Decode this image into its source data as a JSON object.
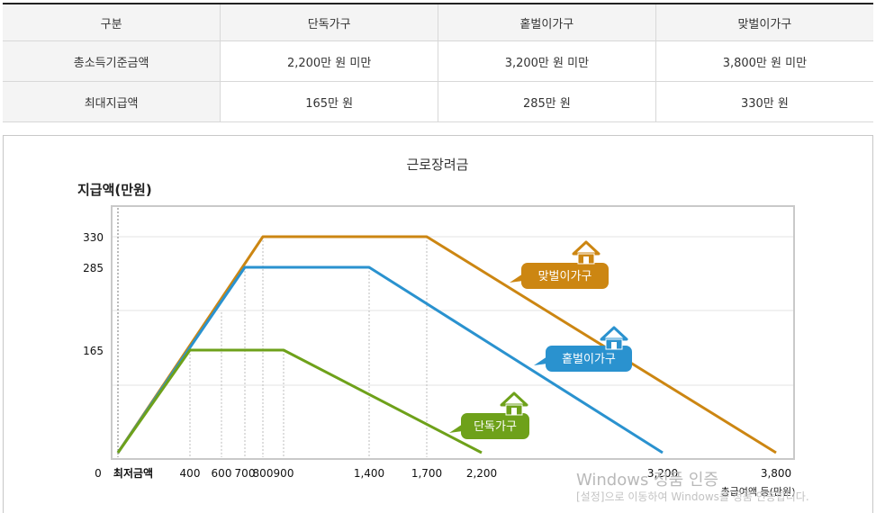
{
  "table": {
    "headers": [
      "구분",
      "단독가구",
      "홑벌이가구",
      "맞벌이가구"
    ],
    "rows": [
      {
        "label": "총소득기준금액",
        "values": [
          "2,200만 원 미만",
          "3,200만 원 미만",
          "3,800만 원 미만"
        ]
      },
      {
        "label": "최대지급액",
        "values": [
          "165만 원",
          "285만 원",
          "330만 원"
        ]
      }
    ]
  },
  "watermark": {
    "line1": "Windows 정품 인증",
    "line2": "[설정]으로 이동하여 Windows를 정품 인증합니다."
  },
  "chart_data": {
    "type": "line",
    "title": "근로장려금",
    "ylabel": "지급액(만원)",
    "xlabel": "총급여액 등(만원)",
    "x_origin_label": "0",
    "min_wage_label": "최저금액",
    "y_ticks": [
      330,
      285,
      165
    ],
    "x_ticks": [
      "400",
      "600",
      "700",
      "800",
      "900",
      "1,400",
      "1,700",
      "2,200",
      "3,200",
      "3,800"
    ],
    "xlim": [
      0,
      3800
    ],
    "ylim": [
      0,
      330
    ],
    "colors": {
      "single": "#6ea11a",
      "one_earner": "#2a92cf",
      "dual": "#cc8612"
    },
    "series": [
      {
        "name": "단독가구",
        "x": [
          0,
          400,
          900,
          2200
        ],
        "y": [
          0,
          165,
          165,
          0
        ]
      },
      {
        "name": "홑벌이가구",
        "x": [
          0,
          700,
          1400,
          3200
        ],
        "y": [
          0,
          285,
          285,
          0
        ]
      },
      {
        "name": "맞벌이가구",
        "x": [
          0,
          800,
          1700,
          3800
        ],
        "y": [
          0,
          330,
          330,
          0
        ]
      }
    ]
  }
}
